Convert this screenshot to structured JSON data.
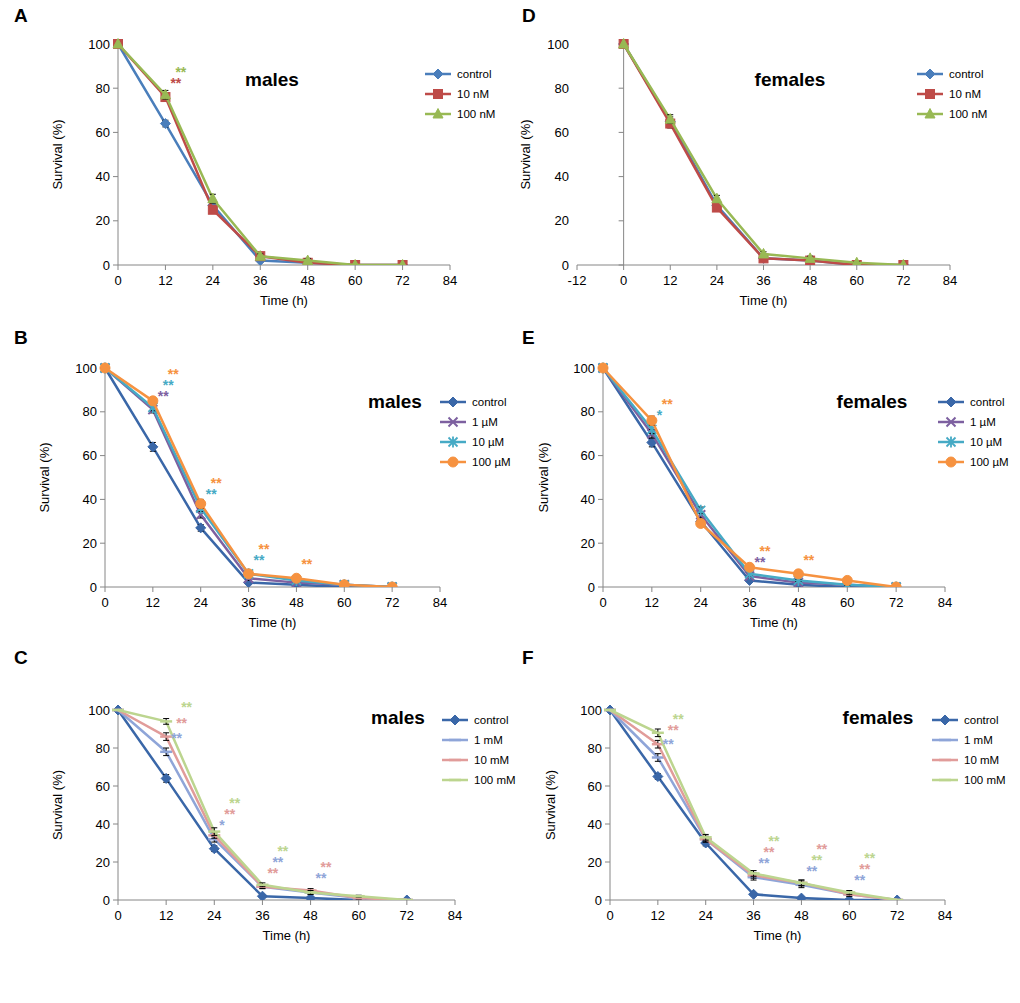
{
  "chart_data": [
    {
      "type": "line",
      "panel_label": "A",
      "title": "males",
      "x_label": "Time (h)",
      "y_label": "Survival (%)",
      "x": [
        0,
        12,
        24,
        36,
        48,
        60,
        72
      ],
      "xlim": [
        0,
        84
      ],
      "xticks": [
        0,
        12,
        24,
        36,
        48,
        60,
        72,
        84
      ],
      "ylim": [
        0,
        100
      ],
      "yticks": [
        0,
        20,
        40,
        60,
        80,
        100
      ],
      "grid": false,
      "legend": "right",
      "series": [
        {
          "name": "control",
          "color": "#4a7ebb",
          "marker": "diamond",
          "line_style": "solid",
          "values": [
            100,
            64,
            27,
            2,
            1,
            0,
            0
          ],
          "errors": [
            0,
            1.5,
            1.5,
            0.5,
            0.5,
            0,
            0
          ]
        },
        {
          "name": "10 nM",
          "color": "#be4b48",
          "marker": "square",
          "line_style": "solid",
          "values": [
            100,
            76,
            25,
            4,
            1,
            0,
            0
          ],
          "errors": [
            0,
            2,
            1.5,
            1,
            0.5,
            0,
            0
          ]
        },
        {
          "name": "100 nM",
          "color": "#98b954",
          "marker": "triangle",
          "line_style": "solid",
          "values": [
            100,
            77,
            30,
            4,
            2,
            0,
            0
          ],
          "errors": [
            0,
            2,
            2,
            1,
            1,
            0,
            0
          ]
        }
      ],
      "annotations": [
        {
          "x": 12,
          "series": "10 nM",
          "text": "**"
        },
        {
          "x": 12,
          "series": "100 nM",
          "text": "**"
        }
      ]
    },
    {
      "type": "line",
      "panel_label": "B",
      "title": "males",
      "x_label": "Time (h)",
      "y_label": "Survival (%)",
      "x": [
        0,
        12,
        24,
        36,
        48,
        60,
        72
      ],
      "xlim": [
        0,
        84
      ],
      "xticks": [
        0,
        12,
        24,
        36,
        48,
        60,
        72,
        84
      ],
      "ylim": [
        0,
        100
      ],
      "yticks": [
        0,
        20,
        40,
        60,
        80,
        100
      ],
      "grid": false,
      "legend": "right",
      "series": [
        {
          "name": "control",
          "color": "#3a67a8",
          "marker": "diamond",
          "line_style": "solid",
          "values": [
            100,
            64,
            27,
            2,
            1,
            0,
            0
          ],
          "errors": [
            0,
            2,
            1.5,
            0.5,
            0.5,
            0,
            0
          ]
        },
        {
          "name": "1 µM",
          "color": "#7d60a0",
          "marker": "x",
          "line_style": "solid",
          "values": [
            100,
            81,
            33,
            4,
            2,
            1,
            0
          ],
          "errors": [
            0,
            1.5,
            1.5,
            1,
            0.5,
            0.5,
            0
          ]
        },
        {
          "name": "10 µM",
          "color": "#46aac5",
          "marker": "asterisk",
          "line_style": "solid",
          "values": [
            100,
            82,
            36,
            6,
            3,
            1,
            0
          ],
          "errors": [
            0,
            1.5,
            1.5,
            1,
            0.5,
            0.5,
            0
          ]
        },
        {
          "name": "100 µM",
          "color": "#f69240",
          "marker": "circle",
          "line_style": "solid",
          "values": [
            100,
            85,
            38,
            6,
            4,
            1,
            0
          ],
          "errors": [
            0,
            1.5,
            2,
            1,
            0.5,
            0.5,
            0
          ]
        }
      ],
      "annotations": [
        {
          "x": 12,
          "series": "1 µM",
          "text": "**"
        },
        {
          "x": 12,
          "series": "10 µM",
          "text": "**"
        },
        {
          "x": 12,
          "series": "100 µM",
          "text": "**"
        },
        {
          "x": 24,
          "series": "10 µM",
          "text": "**"
        },
        {
          "x": 24,
          "series": "100 µM",
          "text": "**"
        },
        {
          "x": 36,
          "series": "10 µM",
          "text": "**"
        },
        {
          "x": 36,
          "series": "100 µM",
          "text": "**"
        },
        {
          "x": 48,
          "series": "100 µM",
          "text": "**"
        }
      ]
    },
    {
      "type": "line",
      "panel_label": "C",
      "title": "males",
      "x_label": "Time (h)",
      "y_label": "Survival (%)",
      "x": [
        0,
        12,
        24,
        36,
        48,
        60,
        72
      ],
      "xlim": [
        0,
        84
      ],
      "xticks": [
        0,
        12,
        24,
        36,
        48,
        60,
        72,
        84
      ],
      "ylim": [
        0,
        100
      ],
      "yticks": [
        0,
        20,
        40,
        60,
        80,
        100
      ],
      "grid": false,
      "legend": "right",
      "series": [
        {
          "name": "control",
          "color": "#3a67a8",
          "marker": "diamond",
          "line_style": "solid",
          "values": [
            100,
            64,
            27,
            2,
            1,
            0,
            0
          ],
          "errors": [
            0,
            2,
            1.5,
            0.5,
            0.5,
            0,
            0
          ]
        },
        {
          "name": "1 mM",
          "color": "#8fa5d8",
          "marker": "dash",
          "line_style": "solid",
          "values": [
            100,
            78,
            32,
            7,
            4,
            1,
            0
          ],
          "errors": [
            0,
            2,
            1.5,
            1,
            1,
            0.5,
            0
          ]
        },
        {
          "name": "10 mM",
          "color": "#e19c9a",
          "marker": "dash",
          "line_style": "solid",
          "values": [
            100,
            86,
            34,
            7,
            5,
            1,
            0
          ],
          "errors": [
            0,
            2,
            1.5,
            1,
            1,
            0.5,
            0
          ]
        },
        {
          "name": "100 mM",
          "color": "#bcd58f",
          "marker": "dash",
          "line_style": "solid",
          "values": [
            100,
            94,
            36,
            8,
            4,
            2,
            0
          ],
          "errors": [
            0,
            1.5,
            2,
            1,
            1,
            0.5,
            0
          ]
        }
      ],
      "annotations": [
        {
          "x": 12,
          "series": "100 mM",
          "text": "**"
        },
        {
          "x": 12,
          "series": "10 mM",
          "text": "**"
        },
        {
          "x": 12,
          "series": "1 mM",
          "text": "**"
        },
        {
          "x": 24,
          "series": "100 mM",
          "text": "**"
        },
        {
          "x": 24,
          "series": "10 mM",
          "text": "**"
        },
        {
          "x": 24,
          "series": "1 mM",
          "text": "*"
        },
        {
          "x": 36,
          "series": "100 mM",
          "text": "**"
        },
        {
          "x": 36,
          "series": "10 mM",
          "text": "**"
        },
        {
          "x": 36,
          "series": "1 mM",
          "text": "**"
        },
        {
          "x": 48,
          "series": "10 mM",
          "text": "**"
        },
        {
          "x": 48,
          "series": "1 mM",
          "text": "**"
        }
      ]
    },
    {
      "type": "line",
      "panel_label": "D",
      "title": "females",
      "x_label": "Time (h)",
      "y_label": "Survival (%)",
      "x": [
        0,
        12,
        24,
        36,
        48,
        60,
        72
      ],
      "xlim": [
        -12,
        84
      ],
      "xticks": [
        -12,
        0,
        12,
        24,
        36,
        48,
        60,
        72,
        84
      ],
      "ylim": [
        0,
        100
      ],
      "yticks": [
        0,
        20,
        40,
        60,
        80,
        100
      ],
      "grid": false,
      "legend": "right",
      "series": [
        {
          "name": "control",
          "color": "#4a7ebb",
          "marker": "diamond",
          "line_style": "solid",
          "values": [
            100,
            65,
            27,
            3,
            2,
            0,
            0
          ],
          "errors": [
            0,
            2,
            1.5,
            1,
            0.5,
            0,
            0
          ]
        },
        {
          "name": "10 nM",
          "color": "#be4b48",
          "marker": "square",
          "line_style": "solid",
          "values": [
            100,
            64,
            26,
            3,
            2,
            0,
            0
          ],
          "errors": [
            0,
            2,
            1.5,
            1,
            0.5,
            0,
            0
          ]
        },
        {
          "name": "100 nM",
          "color": "#98b954",
          "marker": "triangle",
          "line_style": "solid",
          "values": [
            100,
            66,
            30,
            5,
            3,
            1,
            0
          ],
          "errors": [
            0,
            2,
            1.5,
            1,
            1,
            0.5,
            0
          ]
        }
      ]
    },
    {
      "type": "line",
      "panel_label": "E",
      "title": "females",
      "x_label": "Time (h)",
      "y_label": "Survival (%)",
      "x": [
        0,
        12,
        24,
        36,
        48,
        60,
        72
      ],
      "xlim": [
        0,
        84
      ],
      "xticks": [
        0,
        12,
        24,
        36,
        48,
        60,
        72,
        84
      ],
      "ylim": [
        0,
        100
      ],
      "yticks": [
        0,
        20,
        40,
        60,
        80,
        100
      ],
      "grid": false,
      "legend": "right",
      "series": [
        {
          "name": "control",
          "color": "#3a67a8",
          "marker": "diamond",
          "line_style": "solid",
          "values": [
            100,
            66,
            30,
            3,
            1,
            0,
            0
          ],
          "errors": [
            0,
            2,
            1.5,
            0.5,
            0.5,
            0,
            0
          ]
        },
        {
          "name": "1 µM",
          "color": "#7d60a0",
          "marker": "x",
          "line_style": "solid",
          "values": [
            100,
            70,
            33,
            5,
            2,
            1,
            0
          ],
          "errors": [
            0,
            2,
            1.5,
            1,
            0.5,
            0.5,
            0
          ]
        },
        {
          "name": "10 µM",
          "color": "#46aac5",
          "marker": "asterisk",
          "line_style": "solid",
          "values": [
            100,
            72,
            35,
            6,
            3,
            1,
            0
          ],
          "errors": [
            0,
            2,
            1.5,
            1,
            0.5,
            0.5,
            0
          ]
        },
        {
          "name": "100 µM",
          "color": "#f69240",
          "marker": "circle",
          "line_style": "solid",
          "values": [
            100,
            76,
            29,
            9,
            6,
            3,
            0
          ],
          "errors": [
            0,
            2,
            1.5,
            1,
            1,
            0.5,
            0
          ]
        }
      ],
      "annotations": [
        {
          "x": 12,
          "series": "100 µM",
          "text": "**"
        },
        {
          "x": 12,
          "series": "10 µM",
          "text": "*"
        },
        {
          "x": 36,
          "series": "1 µM",
          "text": "**"
        },
        {
          "x": 36,
          "series": "100 µM",
          "text": "**"
        },
        {
          "x": 48,
          "series": "100 µM",
          "text": "**"
        }
      ]
    },
    {
      "type": "line",
      "panel_label": "F",
      "title": "females",
      "x_label": "Time (h)",
      "y_label": "Survival (%)",
      "x": [
        0,
        12,
        24,
        36,
        48,
        60,
        72
      ],
      "xlim": [
        0,
        84
      ],
      "xticks": [
        0,
        12,
        24,
        36,
        48,
        60,
        72,
        84
      ],
      "ylim": [
        0,
        100
      ],
      "yticks": [
        0,
        20,
        40,
        60,
        80,
        100
      ],
      "grid": false,
      "legend": "right",
      "series": [
        {
          "name": "control",
          "color": "#3a67a8",
          "marker": "diamond",
          "line_style": "solid",
          "values": [
            100,
            65,
            30,
            3,
            1,
            0,
            0
          ],
          "errors": [
            0,
            1.5,
            1.5,
            0.5,
            0.5,
            0,
            0
          ]
        },
        {
          "name": "1 mM",
          "color": "#8fa5d8",
          "marker": "dash",
          "line_style": "solid",
          "values": [
            100,
            75,
            32,
            12,
            8,
            3,
            0
          ],
          "errors": [
            0,
            2,
            1.5,
            1.5,
            1.5,
            1,
            0
          ]
        },
        {
          "name": "10 mM",
          "color": "#e19c9a",
          "marker": "dash",
          "line_style": "solid",
          "values": [
            100,
            82,
            32,
            13,
            9,
            3,
            0
          ],
          "errors": [
            0,
            2,
            1.5,
            1.5,
            1.5,
            1,
            0
          ]
        },
        {
          "name": "100 mM",
          "color": "#bcd58f",
          "marker": "dash",
          "line_style": "solid",
          "values": [
            100,
            88,
            33,
            14,
            9,
            4,
            0
          ],
          "errors": [
            0,
            2,
            1.5,
            1.5,
            1.5,
            1,
            0
          ]
        }
      ],
      "annotations": [
        {
          "x": 12,
          "series": "1 mM",
          "text": "**"
        },
        {
          "x": 12,
          "series": "10 mM",
          "text": "**"
        },
        {
          "x": 12,
          "series": "100 mM",
          "text": "**"
        },
        {
          "x": 36,
          "series": "100 mM",
          "text": "**"
        },
        {
          "x": 36,
          "series": "1 mM",
          "text": "**"
        },
        {
          "x": 36,
          "series": "10 mM",
          "text": "**"
        },
        {
          "x": 48,
          "series": "100 mM",
          "text": "**"
        },
        {
          "x": 48,
          "series": "1 mM",
          "text": "**"
        },
        {
          "x": 48,
          "series": "10 mM",
          "text": "**"
        },
        {
          "x": 60,
          "series": "100 mM",
          "text": "**"
        },
        {
          "x": 60,
          "series": "1 mM",
          "text": "**"
        },
        {
          "x": 60,
          "series": "10 mM",
          "text": "**"
        }
      ]
    }
  ]
}
